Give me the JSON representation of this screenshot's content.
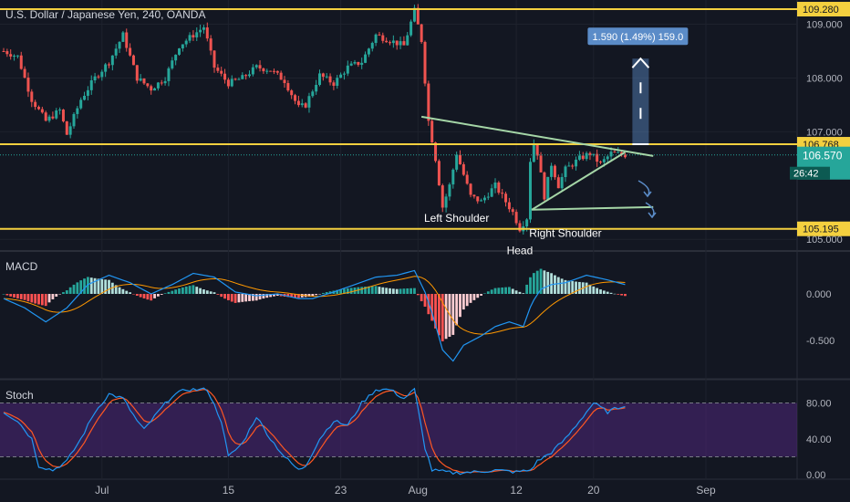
{
  "title": "U.S. Dollar / Japanese Yen, 240, OANDA",
  "colors": {
    "background": "#131722",
    "up": "#26a69a",
    "down": "#ef5350",
    "level": "#f4d03f",
    "trend": "#a5d6a7",
    "annotation": "#5b8cc8",
    "macd_line": "#2196f3",
    "signal_line": "#ff9800",
    "stoch_k": "#2196f3",
    "stoch_d": "#ff5722",
    "stoch_band": "#4a2573"
  },
  "chart_data": [
    {
      "type": "candlestick",
      "name": "price",
      "ylim": [
        104.8,
        109.45
      ],
      "y_ticks": [
        "109.000",
        "108.000",
        "107.000",
        "105.000"
      ],
      "x_ticks": [
        {
          "label": "Jul",
          "t": 14
        },
        {
          "label": "15",
          "t": 32
        },
        {
          "label": "23",
          "t": 48
        },
        {
          "label": "Aug",
          "t": 59
        },
        {
          "label": "12",
          "t": 73
        },
        {
          "label": "20",
          "t": 84
        },
        {
          "label": "Sep",
          "t": 100
        }
      ],
      "horizontal_levels": [
        {
          "value": 109.28,
          "label": "109.280"
        },
        {
          "value": 106.768,
          "label": "106.768"
        },
        {
          "value": 105.195,
          "label": "105.195"
        }
      ],
      "current_price": {
        "value": 106.57,
        "label": "106.570",
        "countdown": "26:42"
      },
      "trendlines": [
        {
          "t1": 59.5,
          "p1": 107.28,
          "t2": 92.5,
          "p2": 106.55
        },
        {
          "t1": 75.2,
          "p1": 105.55,
          "t2": 88.5,
          "p2": 106.62
        },
        {
          "t1": 75.2,
          "p1": 105.55,
          "t2": 92.5,
          "p2": 105.6
        }
      ],
      "measure": {
        "label": "1.590 (1.49%) 159.0",
        "t": 90.7,
        "from": 106.768,
        "to": 108.36
      },
      "annotations": [
        {
          "text": "Left Shoulder",
          "t": 64.5,
          "y": 105.33
        },
        {
          "text": "Right Shoulder",
          "t": 80.0,
          "y": 105.05
        },
        {
          "text": "Head",
          "t": 73.5,
          "y": 104.72
        }
      ],
      "anchors": [
        {
          "t": 0,
          "p": 108.5
        },
        {
          "t": 2,
          "p": 108.4
        },
        {
          "t": 4,
          "p": 107.6
        },
        {
          "t": 6,
          "p": 107.2
        },
        {
          "t": 8,
          "p": 107.4
        },
        {
          "t": 9,
          "p": 106.95
        },
        {
          "t": 11,
          "p": 107.6
        },
        {
          "t": 13,
          "p": 108.0
        },
        {
          "t": 15,
          "p": 108.3
        },
        {
          "t": 17,
          "p": 108.8
        },
        {
          "t": 19,
          "p": 108.0
        },
        {
          "t": 21,
          "p": 107.8
        },
        {
          "t": 23,
          "p": 108.0
        },
        {
          "t": 25,
          "p": 108.6
        },
        {
          "t": 27,
          "p": 108.8
        },
        {
          "t": 28.5,
          "p": 108.95
        },
        {
          "t": 30,
          "p": 108.2
        },
        {
          "t": 32,
          "p": 107.9
        },
        {
          "t": 34,
          "p": 108.0
        },
        {
          "t": 36,
          "p": 108.2
        },
        {
          "t": 38,
          "p": 108.15
        },
        {
          "t": 40,
          "p": 107.95
        },
        {
          "t": 42,
          "p": 107.45
        },
        {
          "t": 43,
          "p": 107.5
        },
        {
          "t": 45,
          "p": 108.05
        },
        {
          "t": 47,
          "p": 107.9
        },
        {
          "t": 49,
          "p": 108.2
        },
        {
          "t": 51,
          "p": 108.3
        },
        {
          "t": 53,
          "p": 108.8
        },
        {
          "t": 55,
          "p": 108.7
        },
        {
          "t": 57,
          "p": 108.6
        },
        {
          "t": 58.5,
          "p": 109.25
        },
        {
          "t": 59.5,
          "p": 108.7
        },
        {
          "t": 60.5,
          "p": 107.2
        },
        {
          "t": 61.5,
          "p": 106.5
        },
        {
          "t": 62.5,
          "p": 105.6
        },
        {
          "t": 63.5,
          "p": 106.0
        },
        {
          "t": 64.5,
          "p": 106.6
        },
        {
          "t": 65.5,
          "p": 106.2
        },
        {
          "t": 66.5,
          "p": 105.8
        },
        {
          "t": 68,
          "p": 105.7
        },
        {
          "t": 70,
          "p": 106.0
        },
        {
          "t": 71.5,
          "p": 105.7
        },
        {
          "t": 72.5,
          "p": 105.5
        },
        {
          "t": 73.5,
          "p": 105.2
        },
        {
          "t": 74.5,
          "p": 105.4
        },
        {
          "t": 75.2,
          "p": 106.9
        },
        {
          "t": 76,
          "p": 106.6
        },
        {
          "t": 77,
          "p": 105.8
        },
        {
          "t": 78,
          "p": 106.4
        },
        {
          "t": 79,
          "p": 106.0
        },
        {
          "t": 80,
          "p": 106.3
        },
        {
          "t": 82,
          "p": 106.5
        },
        {
          "t": 83.5,
          "p": 106.6
        },
        {
          "t": 85,
          "p": 106.4
        },
        {
          "t": 86.5,
          "p": 106.6
        },
        {
          "t": 88.5,
          "p": 106.57
        }
      ]
    },
    {
      "type": "histogram+line",
      "name": "MACD",
      "label": "MACD",
      "ylim": [
        -0.9,
        0.45
      ],
      "y_ticks": [
        "0.000",
        "-0.500"
      ],
      "macd_anchors": [
        {
          "t": 0,
          "v": -0.05
        },
        {
          "t": 3,
          "v": -0.15
        },
        {
          "t": 6,
          "v": -0.3
        },
        {
          "t": 9,
          "v": -0.15
        },
        {
          "t": 12,
          "v": 0.1
        },
        {
          "t": 15,
          "v": 0.2
        },
        {
          "t": 18,
          "v": 0.12
        },
        {
          "t": 21,
          "v": 0.0
        },
        {
          "t": 24,
          "v": 0.1
        },
        {
          "t": 27,
          "v": 0.22
        },
        {
          "t": 30,
          "v": 0.18
        },
        {
          "t": 33,
          "v": 0.02
        },
        {
          "t": 36,
          "v": -0.02
        },
        {
          "t": 39,
          "v": 0.0
        },
        {
          "t": 42,
          "v": -0.05
        },
        {
          "t": 44,
          "v": -0.05
        },
        {
          "t": 47,
          "v": 0.02
        },
        {
          "t": 50,
          "v": 0.1
        },
        {
          "t": 53,
          "v": 0.18
        },
        {
          "t": 56,
          "v": 0.2
        },
        {
          "t": 58.5,
          "v": 0.25
        },
        {
          "t": 60,
          "v": 0.02
        },
        {
          "t": 61,
          "v": -0.2
        },
        {
          "t": 62.5,
          "v": -0.6
        },
        {
          "t": 64,
          "v": -0.72
        },
        {
          "t": 65.5,
          "v": -0.55
        },
        {
          "t": 68,
          "v": -0.45
        },
        {
          "t": 70,
          "v": -0.35
        },
        {
          "t": 72,
          "v": -0.3
        },
        {
          "t": 74,
          "v": -0.35
        },
        {
          "t": 75.2,
          "v": -0.1
        },
        {
          "t": 76.5,
          "v": 0.05
        },
        {
          "t": 78,
          "v": 0.1
        },
        {
          "t": 80,
          "v": 0.12
        },
        {
          "t": 83,
          "v": 0.2
        },
        {
          "t": 86,
          "v": 0.15
        },
        {
          "t": 88.5,
          "v": 0.1
        }
      ]
    },
    {
      "type": "line",
      "name": "Stoch",
      "label": "Stoch",
      "ylim": [
        -5,
        105
      ],
      "y_ticks": [
        "80.00",
        "40.00",
        "0.00"
      ],
      "band": [
        20,
        80
      ],
      "k_anchors": [
        {
          "t": 0,
          "v": 70
        },
        {
          "t": 2,
          "v": 60
        },
        {
          "t": 4,
          "v": 40
        },
        {
          "t": 5,
          "v": 10
        },
        {
          "t": 7,
          "v": 5
        },
        {
          "t": 9,
          "v": 15
        },
        {
          "t": 11,
          "v": 40
        },
        {
          "t": 13,
          "v": 70
        },
        {
          "t": 15,
          "v": 90
        },
        {
          "t": 17,
          "v": 85
        },
        {
          "t": 19,
          "v": 60
        },
        {
          "t": 20,
          "v": 50
        },
        {
          "t": 22,
          "v": 70
        },
        {
          "t": 24,
          "v": 88
        },
        {
          "t": 26,
          "v": 95
        },
        {
          "t": 29,
          "v": 95
        },
        {
          "t": 31,
          "v": 60
        },
        {
          "t": 32,
          "v": 20
        },
        {
          "t": 34,
          "v": 35
        },
        {
          "t": 36,
          "v": 65
        },
        {
          "t": 38,
          "v": 40
        },
        {
          "t": 40,
          "v": 20
        },
        {
          "t": 42,
          "v": 5
        },
        {
          "t": 43,
          "v": 10
        },
        {
          "t": 45,
          "v": 40
        },
        {
          "t": 47,
          "v": 60
        },
        {
          "t": 49,
          "v": 55
        },
        {
          "t": 51,
          "v": 80
        },
        {
          "t": 53,
          "v": 95
        },
        {
          "t": 55,
          "v": 95
        },
        {
          "t": 57,
          "v": 85
        },
        {
          "t": 58.5,
          "v": 95
        },
        {
          "t": 60,
          "v": 30
        },
        {
          "t": 61,
          "v": 5
        },
        {
          "t": 64,
          "v": 2
        },
        {
          "t": 67,
          "v": 3
        },
        {
          "t": 70,
          "v": 5
        },
        {
          "t": 73,
          "v": 3
        },
        {
          "t": 75,
          "v": 5
        },
        {
          "t": 76,
          "v": 15
        },
        {
          "t": 78,
          "v": 25
        },
        {
          "t": 80,
          "v": 40
        },
        {
          "t": 82,
          "v": 60
        },
        {
          "t": 84,
          "v": 80
        },
        {
          "t": 86,
          "v": 70
        },
        {
          "t": 88.5,
          "v": 78
        }
      ]
    }
  ]
}
